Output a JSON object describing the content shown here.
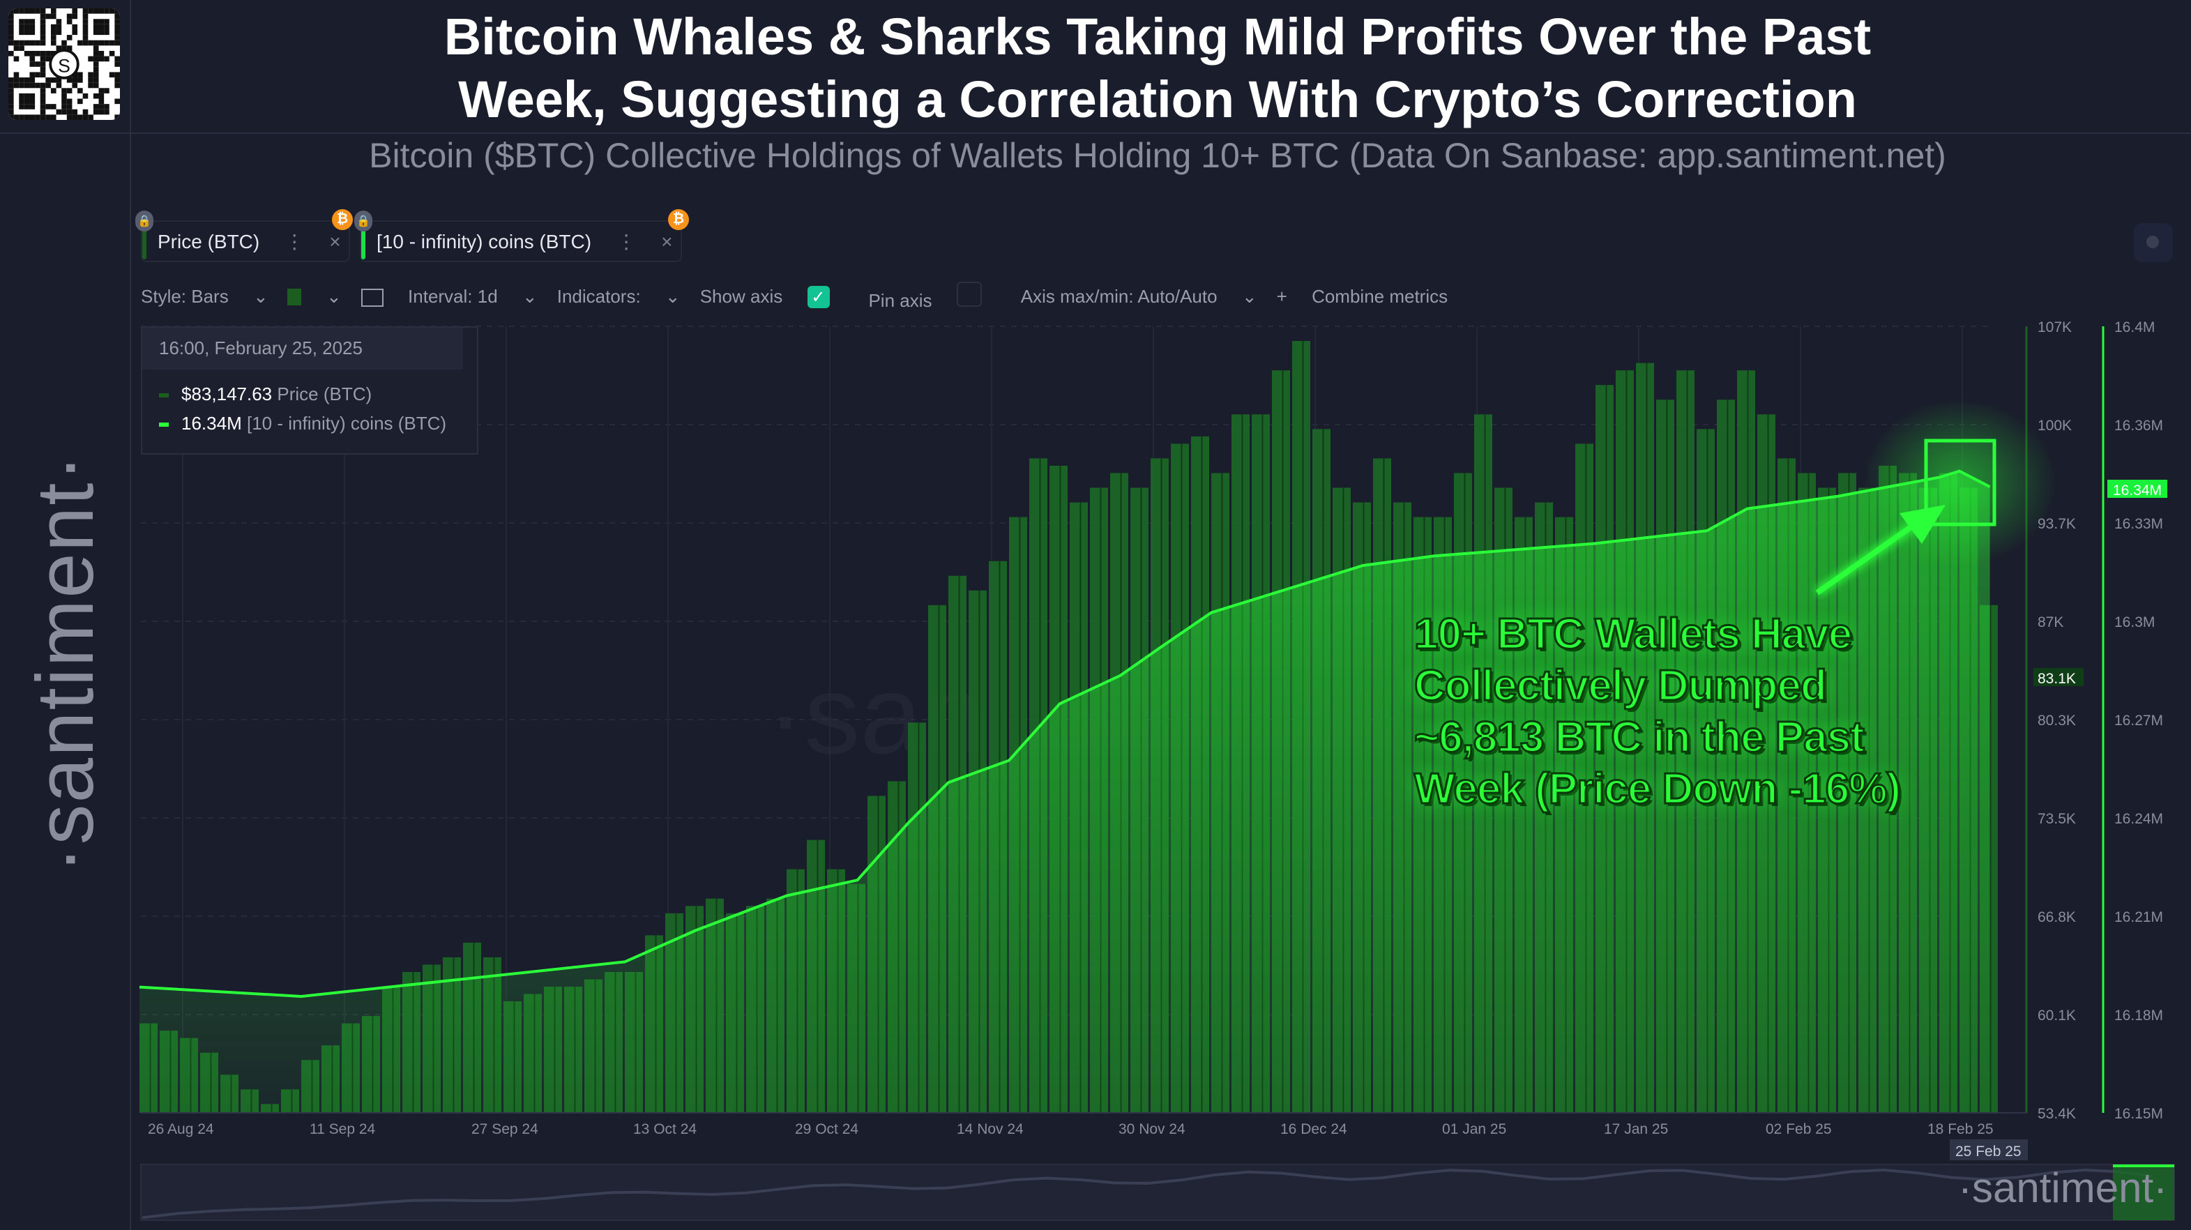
{
  "header": {
    "title_line1": "Bitcoin Whales & Sharks Taking Mild Profits Over the Past",
    "title_line2": "Week, Suggesting a Correlation With Crypto’s Correction",
    "subtitle": "Bitcoin ($BTC) Collective Holdings of Wallets Holding 10+ BTC (Data On Sanbase: app.santiment.net)"
  },
  "brand": {
    "watermark": "·santiment·",
    "chart_watermark": "·santiment·",
    "qr_center": "S"
  },
  "tabs": [
    {
      "label": "Price (BTC)",
      "color": "#1b5e20"
    },
    {
      "label": "[10 - infinity) coins (BTC)",
      "color": "#19e04a"
    }
  ],
  "toolbar": {
    "style": "Style: Bars",
    "interval": "Interval: 1d",
    "indicators": "Indicators:",
    "show_axis": "Show axis",
    "show_axis_checked": true,
    "pin_axis": "Pin axis",
    "pin_axis_checked": false,
    "axis_minmax": "Axis max/min: Auto/Auto",
    "combine": "Combine metrics"
  },
  "tooltip": {
    "date": "16:00, February 25, 2025",
    "price_value": "$83,147.63",
    "price_label": "Price (BTC)",
    "holdings_value": "16.34M",
    "holdings_label": "[10 - infinity) coins (BTC)"
  },
  "annotation": {
    "lines": [
      "10+ BTC Wallets Have",
      "Collectively Dumped",
      "~6,813 BTC in the Past",
      "Week (Price Down -16%)"
    ]
  },
  "chart_data": {
    "type": "bar+line",
    "x_start": "2024-08-26",
    "x_end": "2025-02-25",
    "x_ticks": [
      "26 Aug 24",
      "11 Sep 24",
      "27 Sep 24",
      "13 Oct 24",
      "29 Oct 24",
      "14 Nov 24",
      "30 Nov 24",
      "16 Dec 24",
      "01 Jan 25",
      "17 Jan 25",
      "02 Feb 25",
      "18 Feb 25"
    ],
    "x_current_label": "25 Feb 25",
    "price_axis": {
      "ticks": [
        "107K",
        "100K",
        "93.7K",
        "87K",
        "80.3K",
        "73.5K",
        "66.8K",
        "60.1K",
        "53.4K"
      ],
      "range": [
        53400,
        107000
      ],
      "current": "83.1K"
    },
    "holdings_axis": {
      "ticks": [
        "16.4M",
        "16.36M",
        "16.33M",
        "16.3M",
        "16.27M",
        "16.24M",
        "16.21M",
        "16.18M",
        "16.15M"
      ],
      "range": [
        16150000,
        16400000
      ],
      "current": "16.34M"
    },
    "series": [
      {
        "name": "Price (BTC)",
        "style": "bars",
        "color": "#1f7a2a",
        "interval_days": 2,
        "values_k": [
          59.5,
          59,
          58.5,
          57.5,
          56,
          55,
          54,
          55,
          57,
          58,
          59.5,
          60,
          62,
          63,
          63.5,
          64,
          65,
          64,
          61,
          61.5,
          62,
          62,
          62.5,
          63,
          63,
          65.5,
          67,
          67.5,
          68,
          67,
          67.5,
          68,
          70,
          72,
          70,
          69,
          75,
          76,
          80,
          88,
          90,
          89,
          91,
          94,
          98,
          97.5,
          95,
          96,
          97,
          96,
          98,
          99,
          99.5,
          97,
          101,
          101,
          104,
          106,
          100,
          96,
          95,
          98,
          95,
          94,
          94,
          97,
          101,
          96,
          94,
          95,
          94,
          99,
          103,
          104,
          104.5,
          102,
          104,
          100,
          102,
          104,
          101,
          98,
          97,
          96,
          97,
          96,
          97.5,
          97,
          96,
          97,
          96,
          88
        ]
      },
      {
        "name": "[10 - infinity) coins (BTC)",
        "style": "line",
        "color": "#2bff3a",
        "points": [
          [
            "2024-08-26",
            16.19
          ],
          [
            "2024-09-11",
            16.187
          ],
          [
            "2024-10-13",
            16.198
          ],
          [
            "2024-10-20",
            16.208
          ],
          [
            "2024-10-29",
            16.219
          ],
          [
            "2024-11-05",
            16.224
          ],
          [
            "2024-11-10",
            16.242
          ],
          [
            "2024-11-14",
            16.255
          ],
          [
            "2024-11-20",
            16.262
          ],
          [
            "2024-11-25",
            16.28
          ],
          [
            "2024-12-01",
            16.289
          ],
          [
            "2024-12-05",
            16.298
          ],
          [
            "2024-12-10",
            16.309
          ],
          [
            "2024-12-16",
            16.315
          ],
          [
            "2024-12-25",
            16.324
          ],
          [
            "2025-01-01",
            16.327
          ],
          [
            "2025-01-17",
            16.331
          ],
          [
            "2025-01-28",
            16.335
          ],
          [
            "2025-02-01",
            16.342
          ],
          [
            "2025-02-10",
            16.346
          ],
          [
            "2025-02-20",
            16.352
          ],
          [
            "2025-02-22",
            16.354
          ],
          [
            "2025-02-25",
            16.349
          ]
        ]
      }
    ],
    "highlight_color": "#2bff3a"
  }
}
